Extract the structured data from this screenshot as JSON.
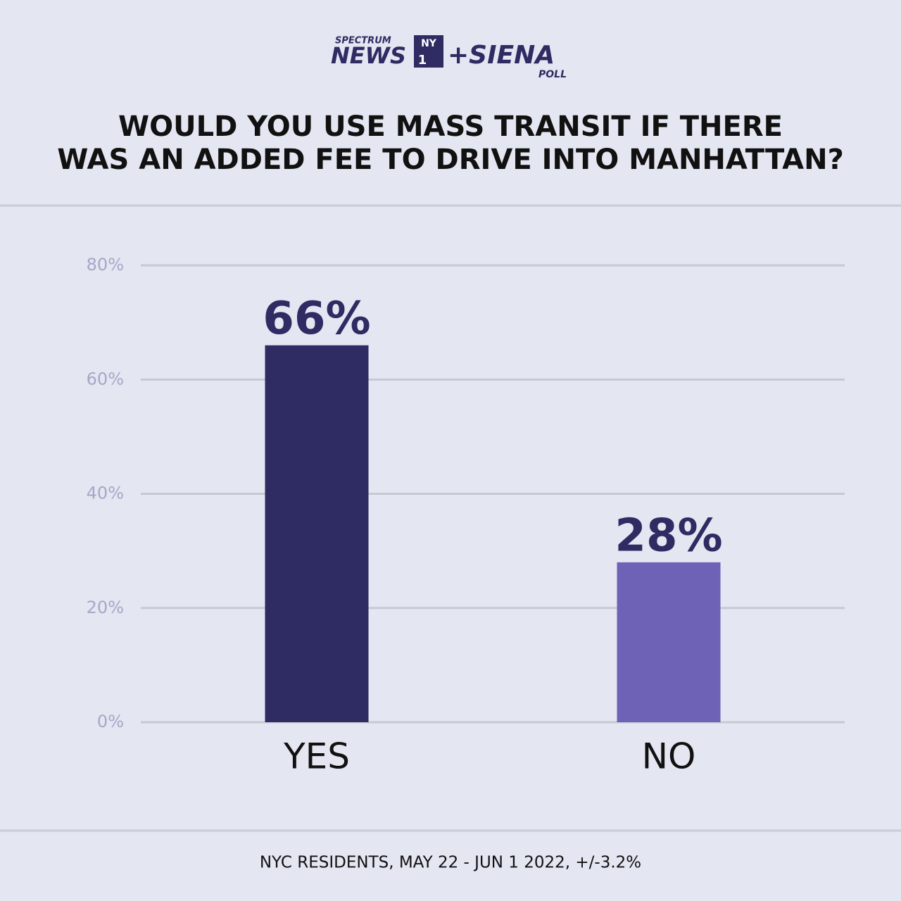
{
  "chart_data": {
    "type": "bar",
    "logo": {
      "top": "SPECTRUM",
      "main": "NEWS",
      "box_top": "NY",
      "box_bottom": "1",
      "partner": "+SIENA",
      "sub": "POLL"
    },
    "title": [
      "WOULD YOU USE MASS TRANSIT IF THERE",
      "WAS AN ADDED FEE TO DRIVE INTO MANHATTAN?"
    ],
    "categories": [
      "YES",
      "NO"
    ],
    "values": [
      66,
      28
    ],
    "value_labels": [
      "66%",
      "28%"
    ],
    "colors": [
      "#2f2b63",
      "#6d62b5"
    ],
    "ylim": [
      0,
      80
    ],
    "yticks": [
      {
        "value": 0,
        "label": "0%"
      },
      {
        "value": 20,
        "label": "20%"
      },
      {
        "value": 40,
        "label": "40%"
      },
      {
        "value": 60,
        "label": "60%"
      },
      {
        "value": 80,
        "label": "80%"
      }
    ],
    "grid": true,
    "footnote": "NYC RESIDENTS, MAY 22 - JUN 1 2022, +/-3.2%"
  }
}
